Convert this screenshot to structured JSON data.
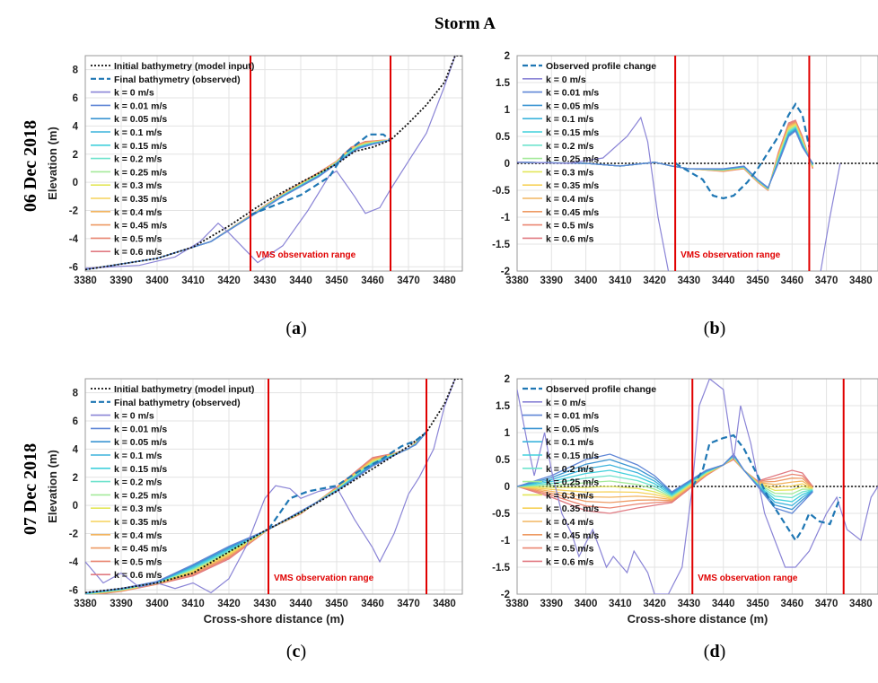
{
  "figure": {
    "title": "Storm A",
    "row_labels": [
      "06 Dec 2018",
      "07 Dec 2018"
    ],
    "panel_labels": [
      "a",
      "b",
      "c",
      "d"
    ],
    "observation_label": "VMS observation range",
    "colors": {
      "initial": "#111111",
      "observed": "#1f77b4",
      "vms": "#e00000",
      "k_series": [
        "#8a84d6",
        "#5f86d6",
        "#3b95d2",
        "#3cb4dc",
        "#42d0dc",
        "#6fe3cd",
        "#a4ea9a",
        "#e3e65a",
        "#f6d25a",
        "#f2b560",
        "#ee9a63",
        "#ea8672",
        "#e17a82"
      ]
    }
  },
  "chart_data": [
    {
      "id": "a",
      "type": "line",
      "xlabel": "",
      "ylabel": "Elevation (m)",
      "xlim": [
        3380,
        3485
      ],
      "ylim": [
        -6.3,
        9
      ],
      "xticks": [
        3380,
        3390,
        3400,
        3410,
        3420,
        3430,
        3440,
        3450,
        3460,
        3470,
        3480
      ],
      "yticks": [
        8,
        6,
        4,
        2,
        0,
        -2,
        -4,
        -6
      ],
      "grid": true,
      "legend": "top-left",
      "vms_range": [
        3426,
        3465
      ],
      "legend_entries": [
        "Initial bathymetry (model input)",
        "Final bathymetry (observed)",
        "k = 0 m/s",
        "k = 0.01 m/s",
        "k = 0.05 m/s",
        "k = 0.1 m/s",
        "k = 0.15 m/s",
        "k = 0.2 m/s",
        "k = 0.25 m/s",
        "k = 0.3 m/s",
        "k = 0.35 m/s",
        "k = 0.4 m/s",
        "k = 0.45 m/s",
        "k = 0.5 m/s",
        "k = 0.6 m/s"
      ],
      "initial": [
        [
          3380,
          -6.2
        ],
        [
          3390,
          -5.8
        ],
        [
          3400,
          -5.4
        ],
        [
          3410,
          -4.6
        ],
        [
          3420,
          -3.1
        ],
        [
          3430,
          -1.4
        ],
        [
          3440,
          0.0
        ],
        [
          3450,
          1.3
        ],
        [
          3455,
          2.2
        ],
        [
          3460,
          2.5
        ],
        [
          3465,
          3.0
        ],
        [
          3470,
          4.2
        ],
        [
          3475,
          5.5
        ],
        [
          3480,
          7.1
        ],
        [
          3483,
          9.0
        ],
        [
          3485,
          9.0
        ]
      ],
      "observed": [
        [
          3426,
          -2.3
        ],
        [
          3432,
          -1.7
        ],
        [
          3440,
          -0.9
        ],
        [
          3448,
          0.4
        ],
        [
          3452,
          2.0
        ],
        [
          3456,
          2.8
        ],
        [
          3459,
          3.4
        ],
        [
          3463,
          3.4
        ],
        [
          3465,
          3.0
        ]
      ],
      "k0": [
        [
          3380,
          -6.1
        ],
        [
          3395,
          -5.9
        ],
        [
          3405,
          -5.3
        ],
        [
          3412,
          -4.2
        ],
        [
          3417,
          -2.9
        ],
        [
          3420,
          -3.6
        ],
        [
          3428,
          -5.7
        ],
        [
          3435,
          -4.5
        ],
        [
          3442,
          -2.0
        ],
        [
          3448,
          0.5
        ],
        [
          3450,
          0.8
        ],
        [
          3455,
          -1.0
        ],
        [
          3458,
          -2.2
        ],
        [
          3462,
          -1.8
        ],
        [
          3465,
          -0.5
        ],
        [
          3470,
          1.5
        ],
        [
          3475,
          3.5
        ],
        [
          3480,
          6.8
        ],
        [
          3483,
          9.0
        ]
      ],
      "k_low": [
        [
          3380,
          -6.2
        ],
        [
          3400,
          -5.4
        ],
        [
          3415,
          -4.2
        ],
        [
          3425,
          -2.6
        ],
        [
          3435,
          -1.0
        ],
        [
          3445,
          0.4
        ],
        [
          3452,
          1.7
        ],
        [
          3456,
          2.4
        ],
        [
          3460,
          2.7
        ],
        [
          3465,
          3.0
        ]
      ],
      "k_high": [
        [
          3380,
          -6.2
        ],
        [
          3400,
          -5.4
        ],
        [
          3415,
          -4.2
        ],
        [
          3425,
          -2.5
        ],
        [
          3435,
          -0.8
        ],
        [
          3445,
          0.7
        ],
        [
          3450,
          1.5
        ],
        [
          3454,
          2.5
        ],
        [
          3458,
          2.9
        ],
        [
          3463,
          3.0
        ],
        [
          3465,
          3.0
        ]
      ]
    },
    {
      "id": "b",
      "type": "line",
      "xlabel": "",
      "ylabel": "",
      "xlim": [
        3380,
        3485
      ],
      "ylim": [
        -2,
        2
      ],
      "xticks": [
        3380,
        3390,
        3400,
        3410,
        3420,
        3430,
        3440,
        3450,
        3460,
        3470,
        3480
      ],
      "yticks": [
        2,
        1.5,
        1,
        0.5,
        0,
        -0.5,
        -1,
        -1.5,
        -2
      ],
      "grid": true,
      "legend": "top-left",
      "vms_range": [
        3426,
        3465
      ],
      "legend_entries": [
        "Observed profile change",
        "k = 0 m/s",
        "k = 0.01 m/s",
        "k = 0.05 m/s",
        "k = 0.1 m/s",
        "k = 0.15 m/s",
        "k = 0.2 m/s",
        "k = 0.25 m/s",
        "k = 0.3 m/s",
        "k = 0.35 m/s",
        "k = 0.4 m/s",
        "k = 0.45 m/s",
        "k = 0.5 m/s",
        "k = 0.6 m/s"
      ],
      "observed": [
        [
          3426,
          0.0
        ],
        [
          3430,
          -0.15
        ],
        [
          3434,
          -0.3
        ],
        [
          3437,
          -0.6
        ],
        [
          3440,
          -0.65
        ],
        [
          3443,
          -0.6
        ],
        [
          3447,
          -0.35
        ],
        [
          3450,
          -0.1
        ],
        [
          3453,
          0.2
        ],
        [
          3456,
          0.5
        ],
        [
          3459,
          0.9
        ],
        [
          3461,
          1.1
        ],
        [
          3463,
          0.9
        ],
        [
          3465,
          0.3
        ]
      ],
      "k0": [
        [
          3380,
          0.02
        ],
        [
          3395,
          0.0
        ],
        [
          3405,
          0.1
        ],
        [
          3412,
          0.5
        ],
        [
          3416,
          0.85
        ],
        [
          3418,
          0.4
        ],
        [
          3421,
          -1.0
        ],
        [
          3424,
          -2.0
        ],
        [
          3428,
          -2.5
        ],
        [
          3447,
          -2.5
        ],
        [
          3450,
          -2.0
        ],
        [
          3452,
          -2.5
        ],
        [
          3467,
          -2.5
        ],
        [
          3471,
          -1.0
        ],
        [
          3474,
          0.0
        ]
      ],
      "k_low": [
        [
          3380,
          0.02
        ],
        [
          3400,
          0.0
        ],
        [
          3410,
          -0.05
        ],
        [
          3420,
          0.02
        ],
        [
          3425,
          -0.05
        ],
        [
          3430,
          -0.1
        ],
        [
          3440,
          -0.1
        ],
        [
          3446,
          -0.05
        ],
        [
          3450,
          -0.3
        ],
        [
          3453,
          -0.45
        ],
        [
          3456,
          0.0
        ],
        [
          3459,
          0.5
        ],
        [
          3461,
          0.6
        ],
        [
          3463,
          0.3
        ],
        [
          3466,
          0.0
        ]
      ],
      "k_high": [
        [
          3380,
          0.02
        ],
        [
          3400,
          0.0
        ],
        [
          3410,
          -0.05
        ],
        [
          3420,
          0.02
        ],
        [
          3425,
          -0.05
        ],
        [
          3430,
          -0.1
        ],
        [
          3440,
          -0.15
        ],
        [
          3446,
          -0.1
        ],
        [
          3450,
          -0.35
        ],
        [
          3453,
          -0.5
        ],
        [
          3456,
          0.2
        ],
        [
          3459,
          0.75
        ],
        [
          3461,
          0.8
        ],
        [
          3463,
          0.5
        ],
        [
          3466,
          -0.1
        ]
      ]
    },
    {
      "id": "c",
      "type": "line",
      "xlabel": "Cross-shore distance (m)",
      "ylabel": "Elevation (m)",
      "xlim": [
        3380,
        3485
      ],
      "ylim": [
        -6.3,
        9
      ],
      "xticks": [
        3380,
        3390,
        3400,
        3410,
        3420,
        3430,
        3440,
        3450,
        3460,
        3470,
        3480
      ],
      "yticks": [
        8,
        6,
        4,
        2,
        0,
        -2,
        -4,
        -6
      ],
      "grid": true,
      "legend": "top-left",
      "vms_range": [
        3431,
        3475
      ],
      "legend_entries": [
        "Initial bathymetry (model input)",
        "Final bathymetry (observed)",
        "k = 0 m/s",
        "k = 0.01 m/s",
        "k = 0.05 m/s",
        "k = 0.1 m/s",
        "k = 0.15 m/s",
        "k = 0.2 m/s",
        "k = 0.25 m/s",
        "k = 0.3 m/s",
        "k = 0.35 m/s",
        "k = 0.4 m/s",
        "k = 0.45 m/s",
        "k = 0.5 m/s",
        "k = 0.6 m/s"
      ],
      "initial": [
        [
          3380,
          -6.2
        ],
        [
          3390,
          -5.9
        ],
        [
          3400,
          -5.5
        ],
        [
          3410,
          -4.8
        ],
        [
          3420,
          -3.3
        ],
        [
          3430,
          -1.8
        ],
        [
          3440,
          -0.5
        ],
        [
          3450,
          1.0
        ],
        [
          3460,
          2.6
        ],
        [
          3470,
          4.2
        ],
        [
          3475,
          5.2
        ],
        [
          3480,
          7.2
        ],
        [
          3483,
          9.0
        ],
        [
          3485,
          9.0
        ]
      ],
      "observed": [
        [
          3431,
          -1.7
        ],
        [
          3437,
          0.5
        ],
        [
          3442,
          1.0
        ],
        [
          3450,
          1.4
        ],
        [
          3456,
          2.4
        ],
        [
          3462,
          3.2
        ],
        [
          3468,
          4.2
        ],
        [
          3472,
          4.6
        ],
        [
          3475,
          5.2
        ]
      ],
      "k0": [
        [
          3380,
          -4.0
        ],
        [
          3385,
          -5.5
        ],
        [
          3390,
          -4.8
        ],
        [
          3395,
          -5.8
        ],
        [
          3400,
          -5.5
        ],
        [
          3405,
          -5.9
        ],
        [
          3410,
          -5.5
        ],
        [
          3415,
          -6.2
        ],
        [
          3420,
          -5.2
        ],
        [
          3425,
          -2.8
        ],
        [
          3430,
          0.5
        ],
        [
          3433,
          1.4
        ],
        [
          3437,
          1.2
        ],
        [
          3440,
          0.5
        ],
        [
          3445,
          1.0
        ],
        [
          3450,
          1.3
        ],
        [
          3455,
          -1.0
        ],
        [
          3460,
          -3.0
        ],
        [
          3462,
          -4.0
        ],
        [
          3466,
          -2.0
        ],
        [
          3470,
          0.8
        ],
        [
          3473,
          2.0
        ],
        [
          3477,
          4.0
        ],
        [
          3480,
          7.0
        ],
        [
          3483,
          9.0
        ]
      ],
      "k_low": [
        [
          3380,
          -6.2
        ],
        [
          3390,
          -5.9
        ],
        [
          3400,
          -5.4
        ],
        [
          3410,
          -4.2
        ],
        [
          3420,
          -2.9
        ],
        [
          3431,
          -1.7
        ],
        [
          3440,
          -0.4
        ],
        [
          3450,
          1.0
        ],
        [
          3460,
          2.8
        ],
        [
          3468,
          3.8
        ],
        [
          3472,
          4.3
        ],
        [
          3475,
          5.2
        ]
      ],
      "k_high": [
        [
          3380,
          -6.4
        ],
        [
          3390,
          -6.1
        ],
        [
          3400,
          -5.6
        ],
        [
          3410,
          -5.0
        ],
        [
          3420,
          -3.8
        ],
        [
          3431,
          -1.7
        ],
        [
          3440,
          -0.6
        ],
        [
          3450,
          1.3
        ],
        [
          3460,
          3.4
        ],
        [
          3466,
          3.7
        ],
        [
          3470,
          4.0
        ],
        [
          3475,
          5.2
        ]
      ]
    },
    {
      "id": "d",
      "type": "line",
      "xlabel": "Cross-shore distance (m)",
      "ylabel": "",
      "xlim": [
        3380,
        3485
      ],
      "ylim": [
        -2,
        2
      ],
      "xticks": [
        3380,
        3390,
        3400,
        3410,
        3420,
        3430,
        3440,
        3450,
        3460,
        3470,
        3480
      ],
      "yticks": [
        2,
        1.5,
        1,
        0.5,
        0,
        -0.5,
        -1,
        -1.5,
        -2
      ],
      "grid": true,
      "legend": "top-left",
      "vms_range": [
        3431,
        3475
      ],
      "legend_entries": [
        "Observed profile change",
        "k = 0 m/s",
        "k = 0.01 m/s",
        "k = 0.05 m/s",
        "k = 0.1 m/s",
        "k = 0.15 m/s",
        "k = 0.2 m/s",
        "k = 0.25 m/s",
        "k = 0.3 m/s",
        "k = 0.35 m/s",
        "k = 0.4 m/s",
        "k = 0.45 m/s",
        "k = 0.5 m/s",
        "k = 0.6 m/s"
      ],
      "observed": [
        [
          3431,
          0.0
        ],
        [
          3434,
          0.3
        ],
        [
          3436,
          0.8
        ],
        [
          3440,
          0.9
        ],
        [
          3443,
          0.95
        ],
        [
          3446,
          0.7
        ],
        [
          3450,
          0.2
        ],
        [
          3453,
          -0.2
        ],
        [
          3456,
          -0.5
        ],
        [
          3459,
          -0.8
        ],
        [
          3461,
          -1.0
        ],
        [
          3463,
          -0.8
        ],
        [
          3465,
          -0.5
        ],
        [
          3468,
          -0.65
        ],
        [
          3471,
          -0.7
        ],
        [
          3474,
          -0.2
        ]
      ],
      "k0": [
        [
          3380,
          1.8
        ],
        [
          3383,
          0.8
        ],
        [
          3385,
          0.2
        ],
        [
          3388,
          1.0
        ],
        [
          3390,
          0.3
        ],
        [
          3393,
          -0.5
        ],
        [
          3396,
          -0.9
        ],
        [
          3398,
          -1.3
        ],
        [
          3402,
          -0.8
        ],
        [
          3406,
          -1.5
        ],
        [
          3408,
          -1.3
        ],
        [
          3412,
          -1.6
        ],
        [
          3414,
          -1.2
        ],
        [
          3418,
          -1.6
        ],
        [
          3420,
          -2.0
        ],
        [
          3424,
          -2.0
        ],
        [
          3428,
          -1.5
        ],
        [
          3431,
          0.0
        ],
        [
          3433,
          1.5
        ],
        [
          3436,
          2.0
        ],
        [
          3440,
          1.8
        ],
        [
          3443,
          0.5
        ],
        [
          3445,
          1.5
        ],
        [
          3448,
          0.8
        ],
        [
          3452,
          -0.5
        ],
        [
          3455,
          -1.0
        ],
        [
          3458,
          -1.5
        ],
        [
          3461,
          -1.5
        ],
        [
          3465,
          -1.2
        ],
        [
          3470,
          -0.5
        ],
        [
          3473,
          -0.2
        ],
        [
          3476,
          -0.8
        ],
        [
          3480,
          -1.0
        ],
        [
          3483,
          -0.2
        ],
        [
          3485,
          0.0
        ]
      ],
      "k_low": [
        [
          3380,
          0.0
        ],
        [
          3390,
          0.2
        ],
        [
          3400,
          0.5
        ],
        [
          3407,
          0.6
        ],
        [
          3415,
          0.4
        ],
        [
          3420,
          0.2
        ],
        [
          3425,
          -0.1
        ],
        [
          3430,
          0.1
        ],
        [
          3435,
          0.3
        ],
        [
          3440,
          0.4
        ],
        [
          3443,
          0.6
        ],
        [
          3446,
          0.3
        ],
        [
          3450,
          0.0
        ],
        [
          3455,
          -0.4
        ],
        [
          3460,
          -0.5
        ],
        [
          3463,
          -0.3
        ],
        [
          3466,
          -0.1
        ]
      ],
      "k_high": [
        [
          3380,
          0.0
        ],
        [
          3390,
          -0.2
        ],
        [
          3400,
          -0.45
        ],
        [
          3407,
          -0.5
        ],
        [
          3415,
          -0.4
        ],
        [
          3420,
          -0.35
        ],
        [
          3425,
          -0.3
        ],
        [
          3430,
          -0.05
        ],
        [
          3435,
          0.2
        ],
        [
          3440,
          0.4
        ],
        [
          3443,
          0.5
        ],
        [
          3446,
          0.3
        ],
        [
          3450,
          0.1
        ],
        [
          3455,
          0.2
        ],
        [
          3460,
          0.3
        ],
        [
          3463,
          0.25
        ],
        [
          3466,
          0.0
        ]
      ]
    }
  ]
}
